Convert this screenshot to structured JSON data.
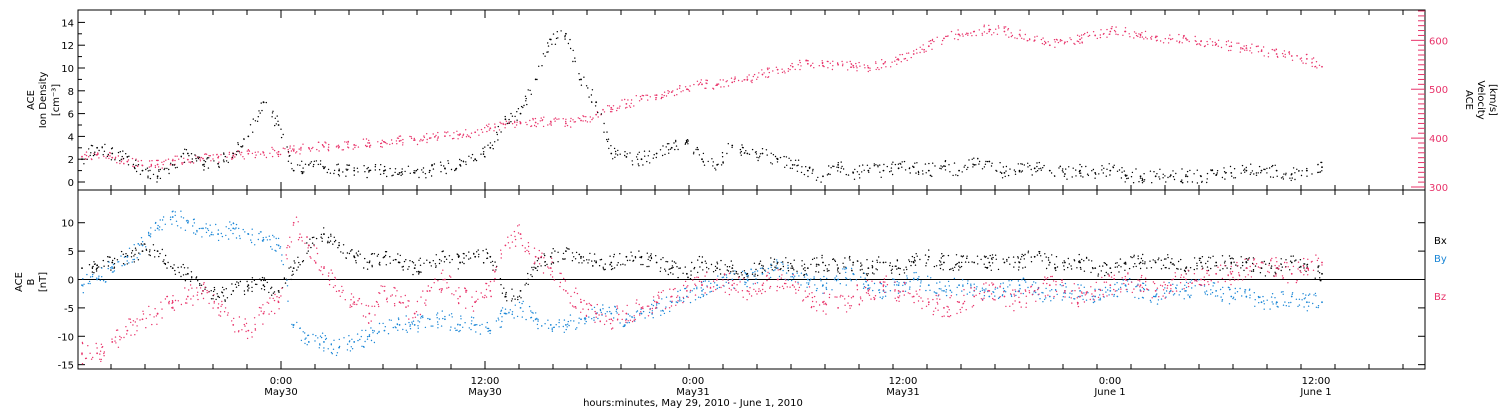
{
  "colors": {
    "black": "#000000",
    "pink": "#e8336a",
    "blue": "#1a86d6"
  },
  "chart_data": [
    {
      "type": "scatter",
      "panel": "top",
      "ylabel_left": [
        "ACE",
        "Ion Density",
        "[cm⁻³]"
      ],
      "ylabel_right": [
        "ACE",
        "Velocity",
        "[km/s]"
      ],
      "ylim_left": [
        0,
        15
      ],
      "ylim_right": [
        300,
        660
      ],
      "yticks_left": [
        0,
        2,
        4,
        6,
        8,
        10,
        12,
        14
      ],
      "yticks_right": [
        300,
        400,
        500,
        600
      ],
      "series": [
        {
          "color": "black",
          "axis": "left",
          "x": [
            0,
            1,
            2,
            3,
            4,
            5,
            6,
            7,
            8,
            9,
            10,
            11,
            12,
            13,
            14,
            15,
            16,
            17,
            18,
            19,
            20,
            21,
            22,
            23,
            24,
            25,
            26,
            27,
            28,
            29,
            30,
            31,
            32,
            33,
            34,
            35,
            36,
            37,
            38,
            39,
            40,
            41,
            42,
            43,
            44,
            45,
            46,
            47,
            48,
            49,
            50,
            51,
            52,
            53,
            54,
            55,
            56,
            57,
            58,
            59,
            60,
            61,
            62,
            63,
            64,
            65,
            66,
            67,
            68,
            69,
            70,
            71,
            72,
            73,
            74,
            75,
            76,
            77,
            78,
            79,
            80,
            81,
            82
          ],
          "y": [
            2.0,
            3.0,
            2.5,
            2.2,
            1.0,
            0.5,
            1.5,
            2.5,
            1.5,
            1.6,
            2.5,
            4.0,
            7.0,
            5.0,
            1.0,
            1.5,
            1.2,
            1.0,
            1.0,
            1.0,
            1.0,
            0.8,
            0.8,
            1.0,
            1.2,
            1.5,
            2.0,
            3.0,
            5.5,
            6.0,
            9.0,
            12.5,
            13.0,
            9.0,
            7.0,
            2.5,
            2.2,
            2.0,
            2.5,
            3.0,
            3.5,
            2.0,
            1.5,
            3.2,
            2.5,
            2.5,
            2.0,
            1.5,
            1.0,
            0.5,
            1.5,
            0.8,
            1.0,
            1.0,
            1.2,
            1.3,
            1.0,
            1.4,
            1.0,
            1.5,
            1.8,
            0.8,
            1.0,
            1.2,
            1.0,
            0.7,
            1.0,
            0.8,
            1.0,
            0.6,
            0.5,
            0.5,
            0.6,
            0.5,
            0.5,
            0.6,
            0.8,
            1.0,
            1.0,
            1.0,
            0.7,
            1.0,
            1.3
          ]
        },
        {
          "color": "pink",
          "axis": "right",
          "x": [
            0,
            1,
            2,
            3,
            4,
            5,
            6,
            7,
            8,
            9,
            10,
            11,
            12,
            13,
            14,
            15,
            16,
            17,
            18,
            19,
            20,
            21,
            22,
            23,
            24,
            25,
            26,
            27,
            28,
            29,
            30,
            31,
            32,
            33,
            34,
            35,
            36,
            37,
            38,
            39,
            40,
            41,
            42,
            43,
            44,
            45,
            46,
            47,
            48,
            49,
            50,
            51,
            52,
            53,
            54,
            55,
            56,
            57,
            58,
            59,
            60,
            61,
            62,
            63,
            64,
            65,
            66,
            67,
            68,
            69,
            70,
            71,
            72,
            73,
            74,
            75,
            76,
            77,
            78,
            79,
            80,
            81,
            82
          ],
          "y": [
            362,
            366,
            360,
            352,
            344,
            346,
            354,
            356,
            358,
            360,
            364,
            368,
            370,
            372,
            374,
            380,
            382,
            382,
            386,
            390,
            392,
            394,
            396,
            400,
            404,
            408,
            412,
            420,
            428,
            430,
            432,
            434,
            430,
            436,
            448,
            462,
            470,
            480,
            488,
            494,
            500,
            510,
            510,
            514,
            520,
            530,
            540,
            546,
            552,
            548,
            550,
            548,
            544,
            552,
            560,
            572,
            588,
            604,
            612,
            618,
            622,
            618,
            612,
            600,
            590,
            596,
            602,
            610,
            618,
            618,
            612,
            606,
            602,
            604,
            598,
            592,
            588,
            584,
            578,
            572,
            568,
            562,
            546
          ]
        }
      ]
    },
    {
      "type": "scatter",
      "panel": "bottom",
      "ylabel_left": [
        "ACE",
        "B",
        "[nT]"
      ],
      "ylim": [
        -15.5,
        15.5
      ],
      "yticks": [
        -15,
        -10,
        -5,
        0,
        5,
        10
      ],
      "legend": [
        "Bx",
        "By",
        "Bz"
      ],
      "legend_position": "right",
      "series": [
        {
          "name": "Bx",
          "color": "black",
          "x": [
            0,
            1,
            2,
            3,
            4,
            5,
            6,
            7,
            8,
            9,
            10,
            11,
            12,
            13,
            14,
            15,
            16,
            17,
            18,
            19,
            20,
            21,
            22,
            23,
            24,
            25,
            26,
            27,
            28,
            29,
            30,
            31,
            32,
            33,
            34,
            35,
            36,
            37,
            38,
            39,
            40,
            41,
            42,
            43,
            44,
            45,
            46,
            47,
            48,
            49,
            50,
            51,
            52,
            53,
            54,
            55,
            56,
            57,
            58,
            59,
            60,
            61,
            62,
            63,
            64,
            65,
            66,
            67,
            68,
            69,
            70,
            71,
            72,
            73,
            74,
            75,
            76,
            77,
            78,
            79,
            80,
            81,
            82
          ],
          "y": [
            2,
            2.5,
            3,
            4,
            5,
            5,
            2,
            1,
            -2,
            -3,
            -2,
            -1,
            -1,
            -2,
            2,
            6,
            8,
            6,
            4,
            3,
            4,
            3,
            2,
            3,
            4,
            3,
            4,
            4,
            -3,
            -2,
            2,
            4,
            5,
            4,
            3,
            3,
            4,
            4,
            3,
            2,
            1,
            3,
            2,
            2,
            1,
            2,
            3,
            2,
            2,
            3,
            2,
            3,
            2,
            3,
            2,
            3,
            4,
            3,
            3,
            3,
            3,
            3,
            3,
            4,
            3,
            3,
            3,
            2,
            2,
            3,
            3,
            3,
            3,
            2,
            3,
            3,
            3,
            3,
            2,
            2,
            3,
            2,
            1
          ]
        },
        {
          "name": "By",
          "color": "blue",
          "x": [
            0,
            1,
            2,
            3,
            4,
            5,
            6,
            7,
            8,
            9,
            10,
            11,
            12,
            13,
            14,
            15,
            16,
            17,
            18,
            19,
            20,
            21,
            22,
            23,
            24,
            25,
            26,
            27,
            28,
            29,
            30,
            31,
            32,
            33,
            34,
            35,
            36,
            37,
            38,
            39,
            40,
            41,
            42,
            43,
            44,
            45,
            46,
            47,
            48,
            49,
            50,
            51,
            52,
            53,
            54,
            55,
            56,
            57,
            58,
            59,
            60,
            61,
            62,
            63,
            64,
            65,
            66,
            67,
            68,
            69,
            70,
            71,
            72,
            73,
            74,
            75,
            76,
            77,
            78,
            79,
            80,
            81,
            82
          ],
          "y": [
            -1,
            0,
            2,
            4,
            6,
            9,
            11,
            10,
            9,
            8,
            9,
            8,
            7,
            6,
            -8,
            -11,
            -11,
            -12,
            -11,
            -10,
            -9,
            -8,
            -8,
            -7,
            -7,
            -8,
            -8,
            -9,
            -6,
            -5,
            -7,
            -8,
            -8,
            -7,
            -6,
            -6,
            -7,
            -6,
            -5,
            -4,
            -3,
            -2,
            -1,
            0,
            0,
            1,
            2,
            1,
            0,
            -1,
            0,
            1,
            -1,
            -2,
            -1,
            0,
            -1,
            -2,
            -1,
            -2,
            -3,
            -2,
            -1,
            -2,
            -3,
            -2,
            -2,
            -3,
            -2,
            -1,
            -2,
            -3,
            -2,
            -2,
            -1,
            -2,
            -3,
            -3,
            -4,
            -4,
            -3,
            -4,
            -4
          ]
        },
        {
          "name": "Bz",
          "color": "pink",
          "x": [
            0,
            1,
            2,
            3,
            4,
            5,
            6,
            7,
            8,
            9,
            10,
            11,
            12,
            13,
            14,
            15,
            16,
            17,
            18,
            19,
            20,
            21,
            22,
            23,
            24,
            25,
            26,
            27,
            28,
            29,
            30,
            31,
            32,
            33,
            34,
            35,
            36,
            37,
            38,
            39,
            40,
            41,
            42,
            43,
            44,
            45,
            46,
            47,
            48,
            49,
            50,
            51,
            52,
            53,
            54,
            55,
            56,
            57,
            58,
            59,
            60,
            61,
            62,
            63,
            64,
            65,
            66,
            67,
            68,
            69,
            70,
            71,
            72,
            73,
            74,
            75,
            76,
            77,
            78,
            79,
            80,
            81,
            82
          ],
          "y": [
            -13,
            -13,
            -11,
            -9,
            -7,
            -6,
            -4,
            -3,
            -2,
            -5,
            -8,
            -9,
            -6,
            -4,
            10,
            6,
            2,
            -2,
            -4,
            -6,
            -2,
            -4,
            -6,
            -2,
            0,
            -3,
            -4,
            -2,
            6,
            8,
            4,
            2,
            -2,
            -4,
            -6,
            -7,
            -6,
            -5,
            -4,
            -3,
            -2,
            -1,
            0,
            -1,
            -2,
            -1,
            0,
            -1,
            -3,
            -4,
            -5,
            -3,
            -2,
            -1,
            -2,
            -3,
            -4,
            -5,
            -4,
            -3,
            -2,
            -3,
            -4,
            -2,
            -1,
            -2,
            -3,
            -2,
            -1,
            0,
            -1,
            -2,
            -1,
            0,
            0,
            1,
            1,
            2,
            3,
            2,
            1,
            2,
            3
          ]
        }
      ]
    }
  ],
  "x_axis": {
    "tick_labels": [
      {
        "time": "0:00",
        "date": "May30"
      },
      {
        "time": "12:00",
        "date": "May30"
      },
      {
        "time": "0:00",
        "date": "May31"
      },
      {
        "time": "12:00",
        "date": "May31"
      },
      {
        "time": "0:00",
        "date": "June 1"
      },
      {
        "time": "12:00",
        "date": "June 1"
      }
    ],
    "xlabel": "hours:minutes, May 29, 2010 - June  1, 2010"
  }
}
